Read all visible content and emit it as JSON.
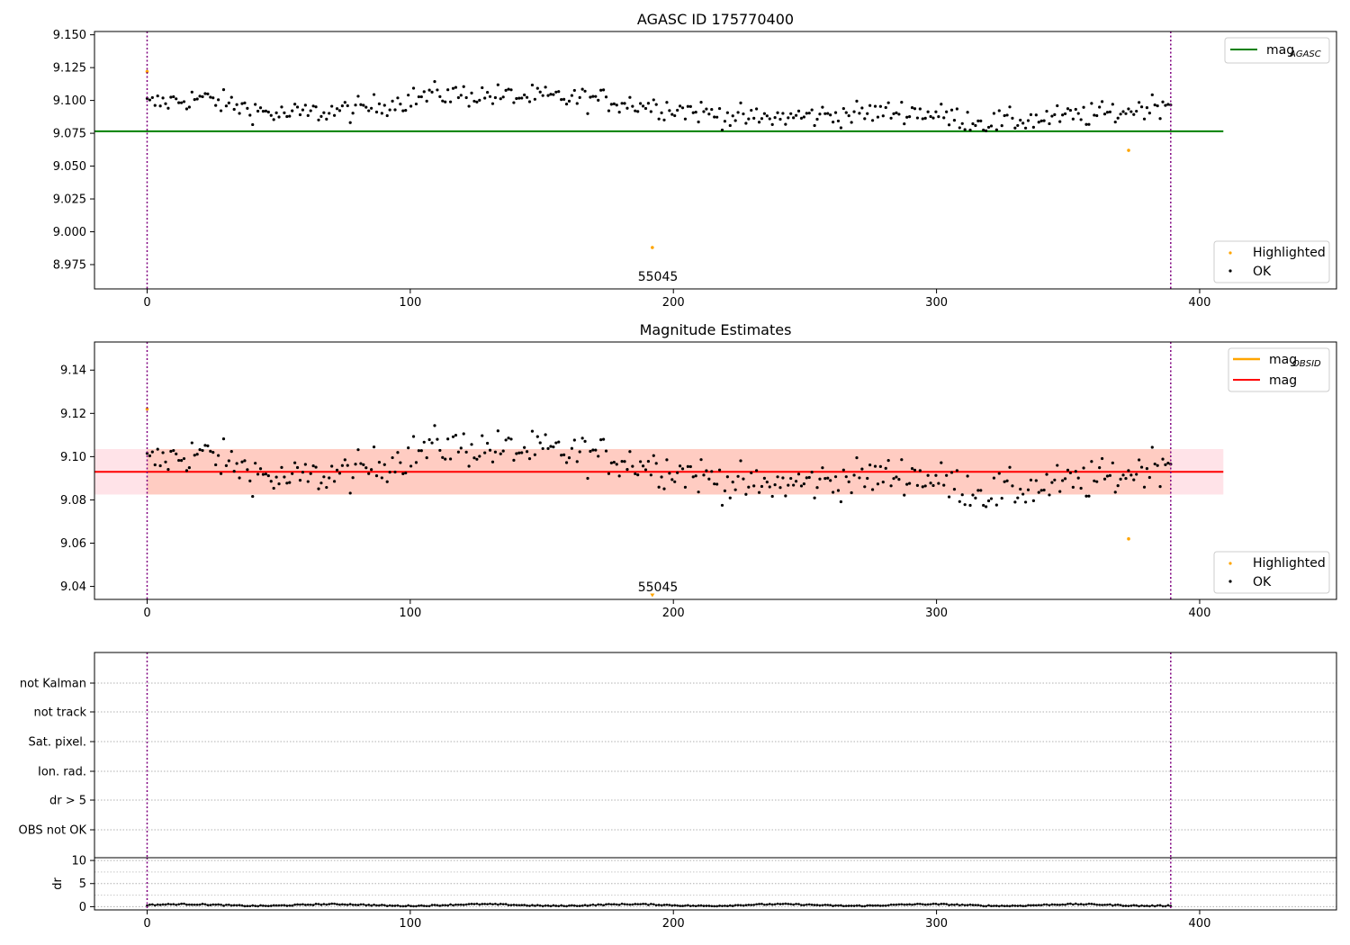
{
  "figure": {
    "event_label": "55045"
  },
  "chart_data": [
    {
      "type": "scatter",
      "title": "AGASC ID 175770400",
      "xlabel": "",
      "ylabel": "",
      "xlim": [
        -20,
        452
      ],
      "ylim": [
        8.9565,
        9.1525
      ],
      "x_ticks": [
        0,
        100,
        200,
        300,
        400
      ],
      "y_ticks": [
        8.975,
        9.0,
        9.025,
        9.05,
        9.075,
        9.1,
        9.125,
        9.15
      ],
      "y_tick_labels": [
        "8.975",
        "9.000",
        "9.025",
        "9.050",
        "9.075",
        "9.100",
        "9.125",
        "9.150"
      ],
      "reference_lines": [
        {
          "name": "mag_AGASC",
          "legend_base": "mag",
          "legend_sub": "AGASC",
          "value": 9.0765,
          "x_range": [
            -20,
            409
          ],
          "color": "#008000"
        }
      ],
      "vertical_lines": [
        0,
        389
      ],
      "series": [
        {
          "name": "Highlighted",
          "color": "#ffa500",
          "points": [
            [
              0,
              9.122
            ],
            [
              192,
              8.988
            ],
            [
              373,
              9.062
            ]
          ]
        },
        {
          "name": "OK",
          "color": "#000000",
          "n_points": 389,
          "x_range": [
            0,
            389
          ],
          "ymin": 9.068,
          "ymax": 9.119,
          "mean": 9.093
        }
      ],
      "annotations": [
        {
          "text": "55045",
          "x": 192,
          "y": 8.9585
        }
      ],
      "legends": [
        {
          "position": "upper right",
          "entries": [
            "mag_AGASC"
          ]
        },
        {
          "position": "lower right",
          "entries": [
            "Highlighted",
            "OK"
          ]
        }
      ],
      "grid": false
    },
    {
      "type": "scatter",
      "title": "Magnitude Estimates",
      "xlabel": "",
      "ylabel": "",
      "xlim": [
        -20,
        452
      ],
      "ylim": [
        9.034,
        9.153
      ],
      "x_ticks": [
        0,
        100,
        200,
        300,
        400
      ],
      "y_ticks": [
        9.04,
        9.06,
        9.08,
        9.1,
        9.12,
        9.14
      ],
      "y_tick_labels": [
        "9.04",
        "9.06",
        "9.08",
        "9.10",
        "9.12",
        "9.14"
      ],
      "reference_lines": [
        {
          "name": "mag",
          "value": 9.093,
          "x_range": [
            -20,
            409
          ],
          "color": "#ff0000"
        }
      ],
      "bands": [
        {
          "ymin": 9.0825,
          "ymax": 9.1035,
          "x_range": [
            -20,
            409
          ],
          "color": "#ffc0cb"
        },
        {
          "ymin": 9.0825,
          "ymax": 9.1035,
          "x_range": [
            0,
            389
          ],
          "color": "#ffa07a"
        }
      ],
      "vertical_lines": [
        0,
        389
      ],
      "series": [
        {
          "name": "Highlighted",
          "color": "#ffa500",
          "points": [
            [
              0,
              9.122
            ],
            [
              373,
              9.062
            ]
          ],
          "markers_at_bottom": [
            192
          ]
        },
        {
          "name": "OK",
          "color": "#000000",
          "n_points": 389,
          "x_range": [
            0,
            389
          ],
          "ymin": 9.068,
          "ymax": 9.119,
          "mean": 9.093
        }
      ],
      "mag_obsid_legend": {
        "legend_base": "mag",
        "legend_sub": "OBSID",
        "color": "#ffa500"
      },
      "annotations": [
        {
          "text": "55045",
          "x": 192,
          "y": 9.0365
        }
      ],
      "legends": [
        {
          "position": "upper right",
          "entries": [
            "mag_OBSID",
            "mag"
          ]
        },
        {
          "position": "lower right",
          "entries": [
            "Highlighted",
            "OK"
          ]
        }
      ],
      "grid": false
    },
    {
      "type": "scatter",
      "title": "",
      "xlabel": "",
      "ylabel": "",
      "flag_labels": [
        "not Kalman",
        "not track",
        "Sat. pixel.",
        "Ion. rad.",
        "dr > 5",
        "OBS not OK"
      ],
      "flags_set": [],
      "xlim": [
        -20,
        452
      ],
      "vertical_lines": [
        0,
        389
      ],
      "grid": true
    },
    {
      "type": "line",
      "title": "",
      "xlabel": "",
      "ylabel": "dr",
      "xlim": [
        -20,
        452
      ],
      "ylim": [
        -0.7,
        10.6
      ],
      "x_ticks": [
        0,
        100,
        200,
        300,
        400
      ],
      "y_ticks": [
        0,
        5,
        10
      ],
      "series": [
        {
          "name": "dr",
          "n_points": 389,
          "x_range": [
            0,
            389
          ],
          "ymin": 0.1,
          "ymax": 0.9,
          "mean": 0.35
        }
      ],
      "vertical_lines": [
        0,
        389
      ],
      "grid": true
    }
  ],
  "legend_text": {
    "highlighted": "Highlighted",
    "ok": "OK",
    "mag": "mag",
    "sub_agasc": "AGASC",
    "sub_obsid": "OBSID"
  }
}
